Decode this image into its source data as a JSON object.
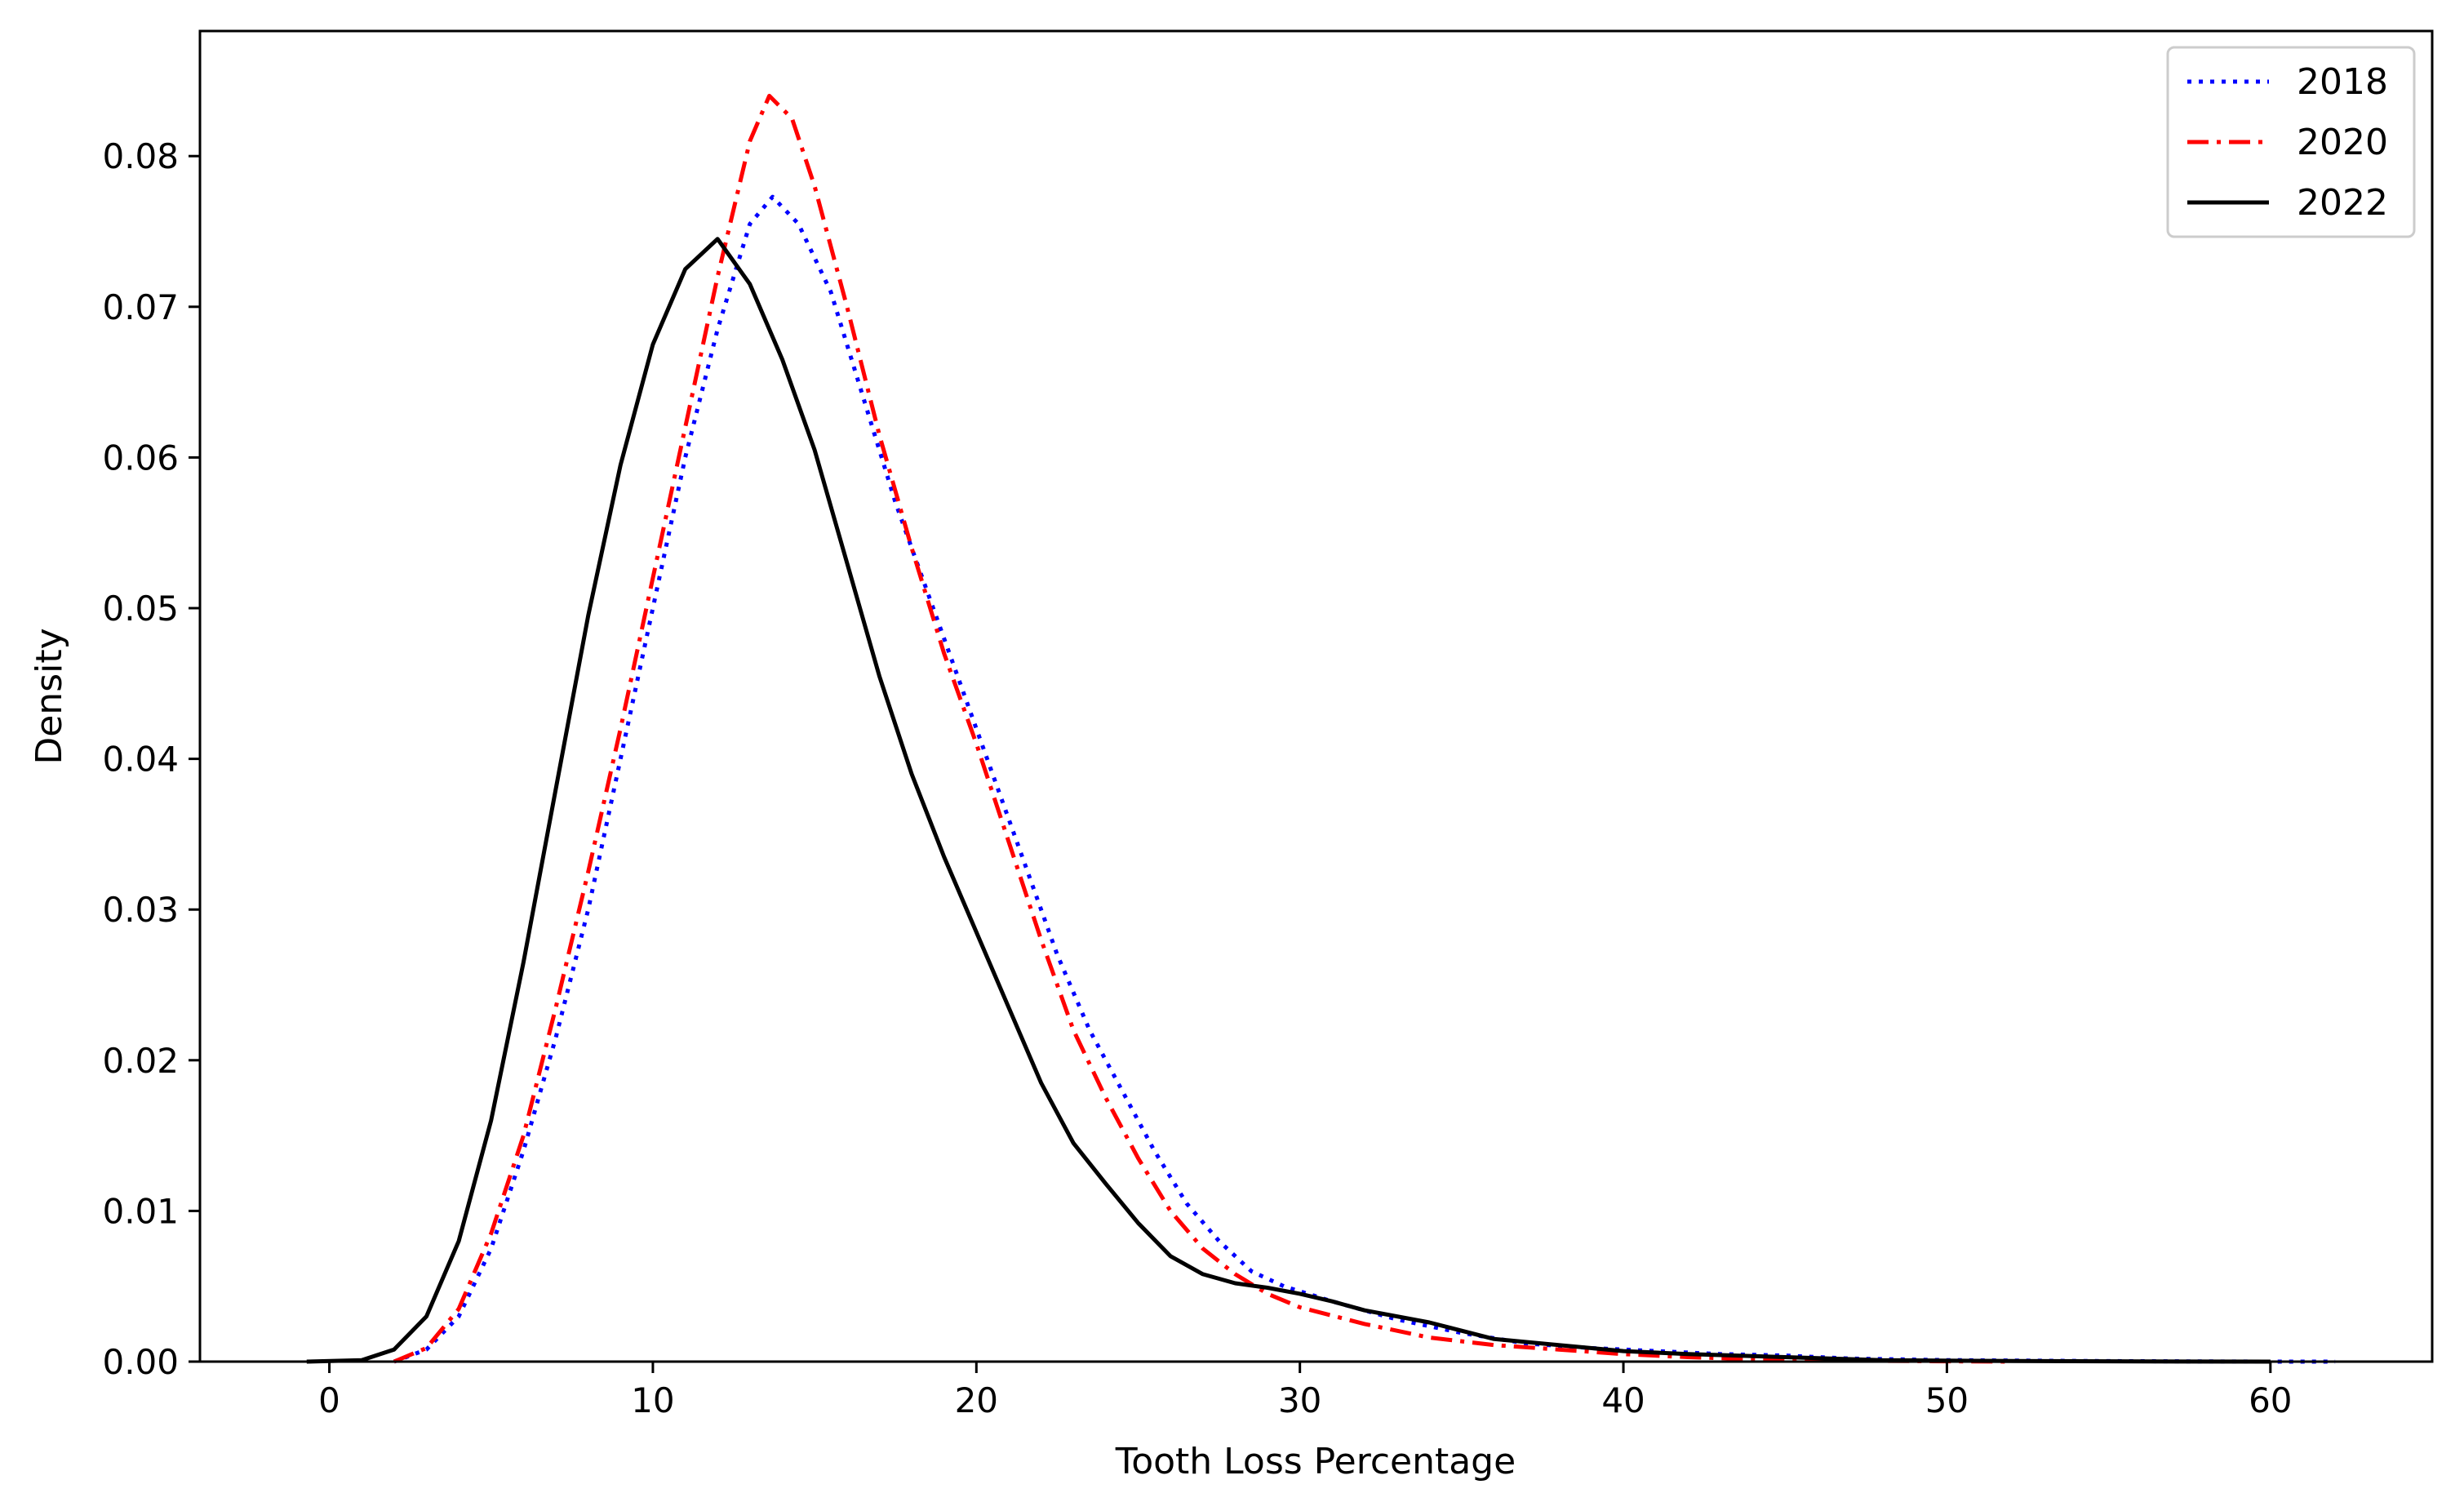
{
  "chart_data": {
    "type": "line",
    "title": "",
    "xlabel": "Tooth Loss Percentage",
    "ylabel": "Density",
    "xlim": [
      -4,
      65
    ],
    "ylim": [
      0,
      0.0883
    ],
    "xticks": [
      0,
      10,
      20,
      30,
      40,
      50,
      60
    ],
    "yticks": [
      0.0,
      0.01,
      0.02,
      0.03,
      0.04,
      0.05,
      0.06,
      0.07,
      0.08
    ],
    "xtick_labels": [
      "0",
      "10",
      "20",
      "30",
      "40",
      "50",
      "60"
    ],
    "ytick_labels": [
      "0.00",
      "0.01",
      "0.02",
      "0.03",
      "0.04",
      "0.05",
      "0.06",
      "0.07",
      "0.08"
    ],
    "grid": false,
    "legend_position": "top-right",
    "series": [
      {
        "name": "2018",
        "color": "#0000ff",
        "style": "dotted",
        "points": [
          [
            2.0,
            0.0
          ],
          [
            3,
            0.0008
          ],
          [
            4,
            0.003
          ],
          [
            5,
            0.0075
          ],
          [
            6,
            0.014
          ],
          [
            7,
            0.0215
          ],
          [
            8,
            0.03
          ],
          [
            9,
            0.04
          ],
          [
            10,
            0.05
          ],
          [
            11,
            0.06
          ],
          [
            12,
            0.0685
          ],
          [
            13,
            0.0755
          ],
          [
            13.7,
            0.0773
          ],
          [
            14.5,
            0.0755
          ],
          [
            15.5,
            0.071
          ],
          [
            16.5,
            0.064
          ],
          [
            17.5,
            0.057
          ],
          [
            18.5,
            0.051
          ],
          [
            19.5,
            0.045
          ],
          [
            20.5,
            0.039
          ],
          [
            21.5,
            0.033
          ],
          [
            22.5,
            0.027
          ],
          [
            23.5,
            0.022
          ],
          [
            24.5,
            0.018
          ],
          [
            25.5,
            0.014
          ],
          [
            26.5,
            0.0105
          ],
          [
            27.5,
            0.008
          ],
          [
            28.5,
            0.006
          ],
          [
            29.5,
            0.005
          ],
          [
            31,
            0.004
          ],
          [
            33,
            0.0028
          ],
          [
            35,
            0.0019
          ],
          [
            37,
            0.0012
          ],
          [
            39,
            0.0009
          ],
          [
            41,
            0.0007
          ],
          [
            43,
            0.0005
          ],
          [
            45,
            0.0004
          ],
          [
            47,
            0.0002
          ],
          [
            50,
            0.0001
          ],
          [
            55,
            3e-05
          ],
          [
            60,
            0.0
          ],
          [
            62,
            0.0
          ]
        ]
      },
      {
        "name": "2020",
        "color": "#ff0000",
        "style": "dashdot",
        "points": [
          [
            2.0,
            0.0
          ],
          [
            3,
            0.0009
          ],
          [
            4,
            0.0035
          ],
          [
            5,
            0.0085
          ],
          [
            6,
            0.015
          ],
          [
            7,
            0.0235
          ],
          [
            8,
            0.0325
          ],
          [
            9,
            0.042
          ],
          [
            10,
            0.052
          ],
          [
            11,
            0.062
          ],
          [
            12,
            0.072
          ],
          [
            13,
            0.081
          ],
          [
            13.6,
            0.084
          ],
          [
            14.3,
            0.0825
          ],
          [
            15,
            0.078
          ],
          [
            16,
            0.07
          ],
          [
            17,
            0.0615
          ],
          [
            18,
            0.054
          ],
          [
            19,
            0.047
          ],
          [
            20,
            0.041
          ],
          [
            21,
            0.0345
          ],
          [
            22,
            0.028
          ],
          [
            23,
            0.022
          ],
          [
            24,
            0.0175
          ],
          [
            25,
            0.0135
          ],
          [
            26,
            0.01
          ],
          [
            27,
            0.0075
          ],
          [
            28,
            0.0058
          ],
          [
            29,
            0.0045
          ],
          [
            30,
            0.0036
          ],
          [
            32,
            0.0025
          ],
          [
            34,
            0.0016
          ],
          [
            36,
            0.0011
          ],
          [
            38,
            0.0008
          ],
          [
            40,
            0.0005
          ],
          [
            42,
            0.0003
          ],
          [
            45,
            0.0001
          ],
          [
            50,
            2e-05
          ],
          [
            52,
            0.0
          ]
        ]
      },
      {
        "name": "2022",
        "color": "#000000",
        "style": "solid",
        "points": [
          [
            -0.7,
            0.0
          ],
          [
            1,
            0.0001
          ],
          [
            2,
            0.0008
          ],
          [
            3,
            0.003
          ],
          [
            4,
            0.008
          ],
          [
            5,
            0.016
          ],
          [
            6,
            0.0265
          ],
          [
            7,
            0.038
          ],
          [
            8,
            0.0495
          ],
          [
            9,
            0.0595
          ],
          [
            10,
            0.0675
          ],
          [
            11,
            0.0725
          ],
          [
            12,
            0.0745
          ],
          [
            13,
            0.0715
          ],
          [
            14,
            0.0665
          ],
          [
            15,
            0.0605
          ],
          [
            16,
            0.053
          ],
          [
            17,
            0.0455
          ],
          [
            18,
            0.039
          ],
          [
            19,
            0.0335
          ],
          [
            20,
            0.0285
          ],
          [
            21,
            0.0235
          ],
          [
            22,
            0.0185
          ],
          [
            23,
            0.0145
          ],
          [
            24,
            0.0118
          ],
          [
            25,
            0.0092
          ],
          [
            26,
            0.007
          ],
          [
            27,
            0.0058
          ],
          [
            28,
            0.0052
          ],
          [
            29,
            0.0049
          ],
          [
            30,
            0.0045
          ],
          [
            31,
            0.004
          ],
          [
            32,
            0.0034
          ],
          [
            34,
            0.0026
          ],
          [
            36,
            0.0015
          ],
          [
            38,
            0.0011
          ],
          [
            40,
            0.0007
          ],
          [
            42,
            0.0005
          ],
          [
            45,
            0.0003
          ],
          [
            48,
            0.0001
          ],
          [
            52,
            4e-05
          ],
          [
            56,
            1e-05
          ],
          [
            60,
            0.0
          ]
        ]
      }
    ]
  }
}
